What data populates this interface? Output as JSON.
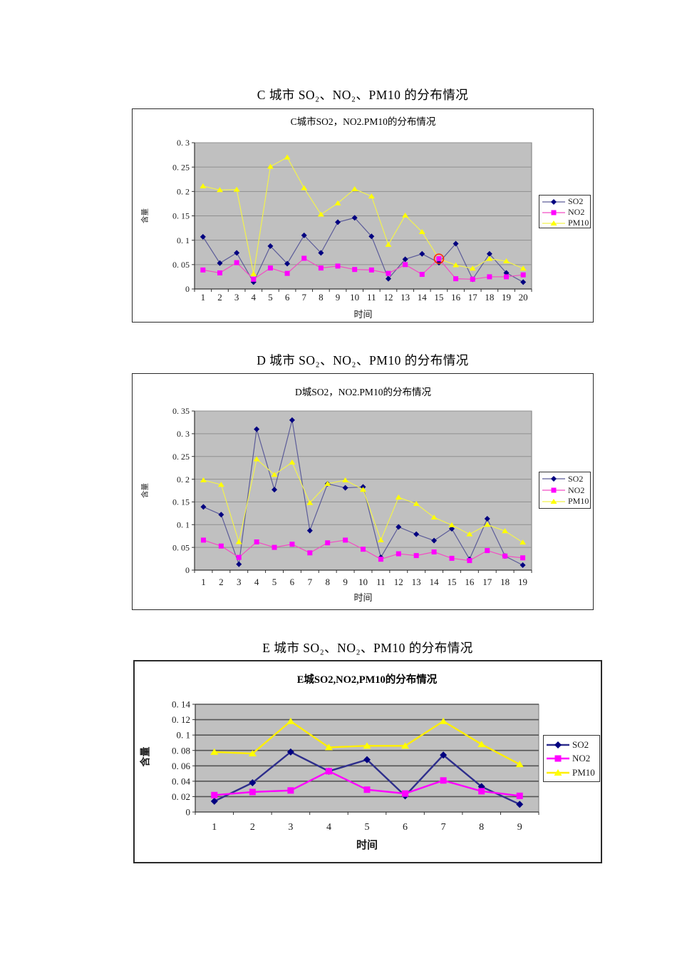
{
  "chart_data": [
    {
      "id": "c",
      "type": "line",
      "outer_title": "C 城市 SO₂、NO₂、PM10 的分布情况",
      "title": "C城市SO2，NO2.PM10的分布情况",
      "xlabel": "时间",
      "ylabel": "含量",
      "ylim": [
        0,
        0.3
      ],
      "y_ticks": [
        "0",
        "0. 05",
        "0. 1",
        "0. 15",
        "0. 2",
        "0. 25",
        "0. 3"
      ],
      "categories": [
        "1",
        "2",
        "3",
        "4",
        "5",
        "6",
        "7",
        "8",
        "9",
        "10",
        "11",
        "12",
        "13",
        "14",
        "15",
        "16",
        "17",
        "18",
        "19",
        "20"
      ],
      "plot_bg": "#c0c0c0",
      "grid_color": "#8f8f8f",
      "legend_position": "right",
      "series": [
        {
          "name": "SO2",
          "marker": "diamond",
          "color": "#000080",
          "line_color": "#5c5c99",
          "values": [
            0.107,
            0.053,
            0.074,
            0.014,
            0.088,
            0.052,
            0.11,
            0.074,
            0.137,
            0.146,
            0.108,
            0.021,
            0.061,
            0.072,
            0.054,
            0.093,
            0.02,
            0.072,
            0.033,
            0.014
          ]
        },
        {
          "name": "NO2",
          "marker": "square",
          "color": "#ff00ff",
          "line_color": "#f24dc3",
          "values": [
            0.039,
            0.033,
            0.054,
            0.02,
            0.043,
            0.032,
            0.063,
            0.043,
            0.047,
            0.04,
            0.039,
            0.032,
            0.05,
            0.03,
            0.062,
            0.021,
            0.02,
            0.025,
            0.025,
            0.029
          ]
        },
        {
          "name": "PM10",
          "marker": "triangle",
          "color": "#ffff00",
          "line_color": "#f2f24d",
          "values": [
            0.211,
            0.203,
            0.204,
            0.031,
            0.251,
            0.27,
            0.207,
            0.153,
            0.176,
            0.205,
            0.19,
            0.091,
            0.151,
            0.117,
            0.062,
            0.049,
            0.042,
            0.062,
            0.057,
            0.042
          ]
        }
      ],
      "highlight": {
        "series": 1,
        "index": 14,
        "color": "#ff2a00"
      }
    },
    {
      "id": "d",
      "type": "line",
      "outer_title": "D 城市 SO₂、NO₂、PM10 的分布情况",
      "title": "D城SO2，NO2.PM10的分布情况",
      "xlabel": "时间",
      "ylabel": "含量",
      "ylim": [
        0,
        0.35
      ],
      "y_ticks": [
        "0",
        "0. 05",
        "0. 1",
        "0. 15",
        "0. 2",
        "0. 25",
        "0. 3",
        "0. 35"
      ],
      "categories": [
        "1",
        "2",
        "3",
        "4",
        "5",
        "6",
        "7",
        "8",
        "9",
        "10",
        "11",
        "12",
        "13",
        "14",
        "15",
        "16",
        "17",
        "18",
        "19"
      ],
      "plot_bg": "#c0c0c0",
      "grid_color": "#8f8f8f",
      "legend_position": "right",
      "series": [
        {
          "name": "SO2",
          "marker": "diamond",
          "color": "#000080",
          "line_color": "#5c5c99",
          "values": [
            0.139,
            0.122,
            0.013,
            0.31,
            0.177,
            0.33,
            0.087,
            0.19,
            0.181,
            0.183,
            0.028,
            0.095,
            0.079,
            0.065,
            0.091,
            0.024,
            0.113,
            0.031,
            0.011
          ]
        },
        {
          "name": "NO2",
          "marker": "square",
          "color": "#ff00ff",
          "line_color": "#f24dc3",
          "values": [
            0.066,
            0.053,
            0.028,
            0.062,
            0.05,
            0.057,
            0.038,
            0.06,
            0.066,
            0.046,
            0.024,
            0.036,
            0.032,
            0.04,
            0.026,
            0.021,
            0.043,
            0.031,
            0.027
          ]
        },
        {
          "name": "PM10",
          "marker": "triangle",
          "color": "#ffff00",
          "line_color": "#f2f24d",
          "values": [
            0.198,
            0.188,
            0.062,
            0.244,
            0.21,
            0.237,
            0.148,
            0.19,
            0.198,
            0.177,
            0.066,
            0.16,
            0.146,
            0.116,
            0.099,
            0.079,
            0.1,
            0.086,
            0.061
          ]
        }
      ]
    },
    {
      "id": "e",
      "type": "line",
      "outer_title": "E 城市 SO₂、NO₂、PM10 的分布情况",
      "title": "E城SO2,NO2,PM10的分布情况",
      "xlabel": "时间",
      "ylabel": "含量",
      "ylim": [
        0,
        0.14
      ],
      "y_ticks": [
        "0",
        "0. 02",
        "0. 04",
        "0. 06",
        "0. 08",
        "0. 1",
        "0. 12",
        "0. 14"
      ],
      "categories": [
        "1",
        "2",
        "3",
        "4",
        "5",
        "6",
        "7",
        "8",
        "9"
      ],
      "plot_bg": "#c0c0c0",
      "grid_color": "#555555",
      "legend_position": "right",
      "series": [
        {
          "name": "SO2",
          "marker": "diamond",
          "color": "#000080",
          "line_color": "#2e2e8c",
          "values": [
            0.014,
            0.038,
            0.078,
            0.053,
            0.068,
            0.021,
            0.074,
            0.033,
            0.01
          ]
        },
        {
          "name": "NO2",
          "marker": "square",
          "color": "#ff00ff",
          "line_color": "#ff00ff",
          "values": [
            0.022,
            0.026,
            0.028,
            0.053,
            0.029,
            0.024,
            0.041,
            0.027,
            0.021
          ]
        },
        {
          "name": "PM10",
          "marker": "triangle",
          "color": "#ffff00",
          "line_color": "#ffee00",
          "values": [
            0.078,
            0.076,
            0.118,
            0.084,
            0.086,
            0.086,
            0.118,
            0.088,
            0.062
          ]
        }
      ]
    }
  ]
}
